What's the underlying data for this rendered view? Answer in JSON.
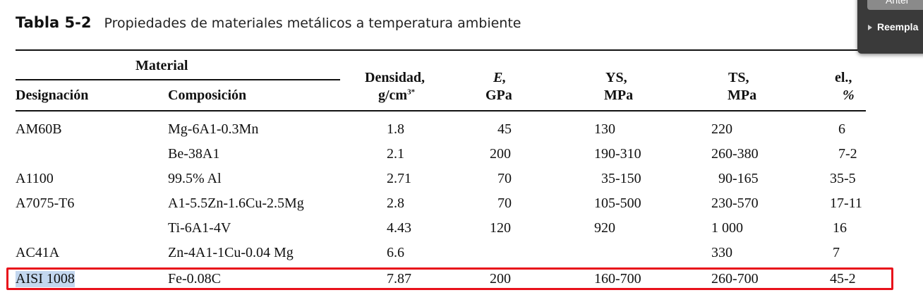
{
  "title": {
    "label": "Tabla 5-2",
    "text": "Propiedades de materiales metálicos a temperatura ambiente"
  },
  "headers": {
    "material_group": "Material",
    "designacion": "Designación",
    "composicion": "Composición",
    "densidad_1": "Densidad,",
    "densidad_2": "g/cm",
    "densidad_sup": "3*",
    "e_1": "E,",
    "e_2": "GPa",
    "ys_1": "YS,",
    "ys_2": "MPa",
    "ts_1": "TS,",
    "ts_2": "MPa",
    "el_1": "el.,",
    "el_2": "%"
  },
  "rows": [
    {
      "designacion": "AM60B",
      "composicion": "Mg-6A1-0.3Mn",
      "densidad": "1.8",
      "e": "45",
      "ys": "130",
      "ts": "220",
      "el": "6"
    },
    {
      "designacion": "",
      "composicion": "Be-38A1",
      "densidad": "2.1",
      "e": "200",
      "ys": "190-310",
      "ts": "260-380",
      "el": "7-2"
    },
    {
      "designacion": "A1100",
      "composicion": "99.5% Al",
      "densidad": "2.71",
      "e": "70",
      "ys": "35-150",
      "ts": "90-165",
      "el": "35-5"
    },
    {
      "designacion": "A7075-T6",
      "composicion": "A1-5.5Zn-1.6Cu-2.5Mg",
      "densidad": "2.8",
      "e": "70",
      "ys": "105-500",
      "ts": "230-570",
      "el": "17-11"
    },
    {
      "designacion": "",
      "composicion": "Ti-6A1-4V",
      "densidad": "4.43",
      "e": "120",
      "ys": "920",
      "ts": "1 000",
      "el": "16"
    },
    {
      "designacion": "AC41A",
      "composicion": "Zn-4A1-1Cu-0.04 Mg",
      "densidad": "6.6",
      "e": "",
      "ys": "",
      "ts": "330",
      "el": "7"
    },
    {
      "designacion": "AISI 1008",
      "composicion": "Fe-0.08C",
      "densidad": "7.87",
      "e": "200",
      "ys": "160-700",
      "ts": "260-700",
      "el": "45-2"
    }
  ],
  "popup": {
    "top_button": "Anter",
    "item": "Reempla"
  },
  "colors": {
    "highlight_border": "#e8111b",
    "selection": "#c3d7ef",
    "popup_bg": "#3a3a3a"
  }
}
